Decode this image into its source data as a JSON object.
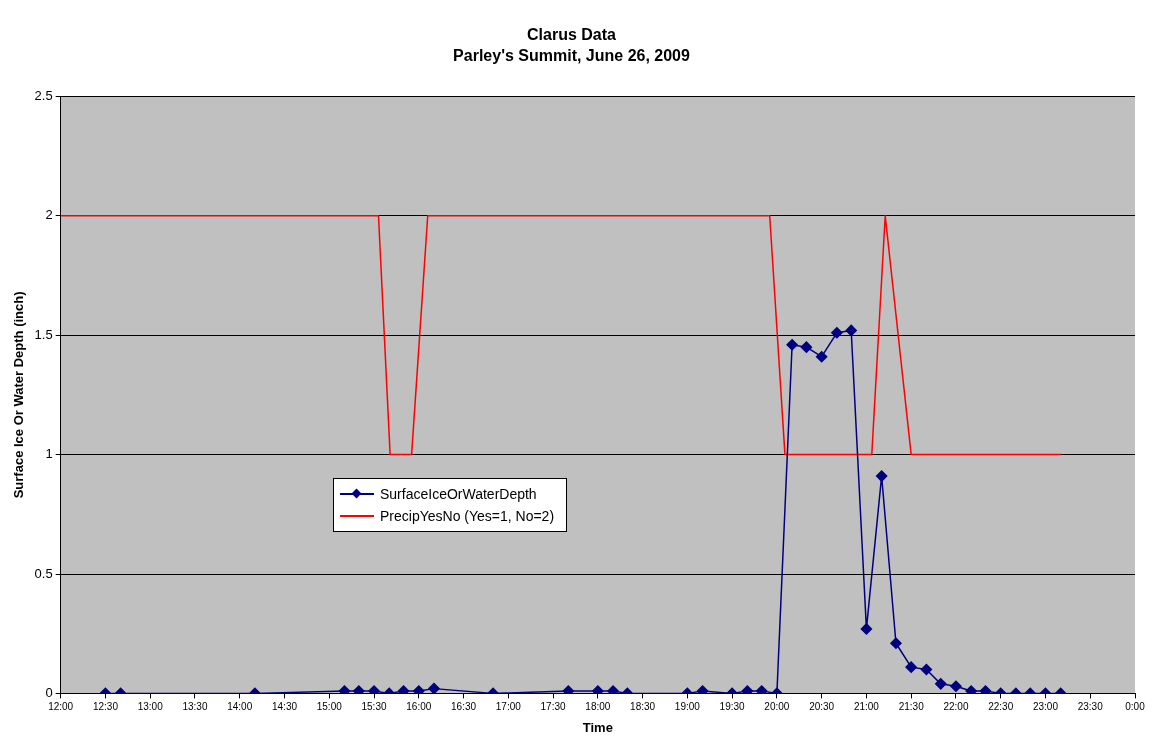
{
  "chart_data": {
    "type": "line",
    "title": "Clarus Data",
    "subtitle": "Parley's Summit, June 26, 2009",
    "xlabel": "Time",
    "ylabel": "Surface Ice Or Water Depth (inch)",
    "xlim": [
      12,
      24
    ],
    "xticks": [
      {
        "value": 12,
        "label": "12:00"
      },
      {
        "value": 12.5,
        "label": "12:30"
      },
      {
        "value": 13,
        "label": "13:00"
      },
      {
        "value": 13.5,
        "label": "13:30"
      },
      {
        "value": 14,
        "label": "14:00"
      },
      {
        "value": 14.5,
        "label": "14:30"
      },
      {
        "value": 15,
        "label": "15:00"
      },
      {
        "value": 15.5,
        "label": "15:30"
      },
      {
        "value": 16,
        "label": "16:00"
      },
      {
        "value": 16.5,
        "label": "16:30"
      },
      {
        "value": 17,
        "label": "17:00"
      },
      {
        "value": 17.5,
        "label": "17:30"
      },
      {
        "value": 18,
        "label": "18:00"
      },
      {
        "value": 18.5,
        "label": "18:30"
      },
      {
        "value": 19,
        "label": "19:00"
      },
      {
        "value": 19.5,
        "label": "19:30"
      },
      {
        "value": 20,
        "label": "20:00"
      },
      {
        "value": 20.5,
        "label": "20:30"
      },
      {
        "value": 21,
        "label": "21:00"
      },
      {
        "value": 21.5,
        "label": "21:30"
      },
      {
        "value": 22,
        "label": "22:00"
      },
      {
        "value": 22.5,
        "label": "22:30"
      },
      {
        "value": 23,
        "label": "23:00"
      },
      {
        "value": 23.5,
        "label": "23:30"
      },
      {
        "value": 24,
        "label": "0:00"
      }
    ],
    "ylim": [
      0,
      2.5
    ],
    "yticks": [
      0,
      0.5,
      1,
      1.5,
      2,
      2.5
    ],
    "grid": "y",
    "legend": "center",
    "series": [
      {
        "name": "SurfaceIceOrWaterDepth",
        "color": "#000080",
        "marker": "diamond",
        "x": [
          12.5,
          12.67,
          14.17,
          15.17,
          15.33,
          15.5,
          15.67,
          15.83,
          16,
          16.17,
          16.83,
          17.67,
          18,
          18.17,
          18.33,
          19,
          19.17,
          19.5,
          19.67,
          19.83,
          20,
          20.17,
          20.33,
          20.5,
          20.67,
          20.83,
          21,
          21.17,
          21.33,
          21.5,
          21.67,
          21.83,
          22,
          22.17,
          22.33,
          22.5,
          22.67,
          22.83,
          23,
          23.17
        ],
        "values": [
          0,
          0,
          0,
          0.01,
          0.01,
          0.01,
          0,
          0.01,
          0.01,
          0.02,
          0,
          0.01,
          0.01,
          0.01,
          0,
          0,
          0.01,
          0,
          0.01,
          0.01,
          0,
          1.46,
          1.45,
          1.41,
          1.51,
          1.52,
          0.27,
          0.91,
          0.21,
          0.11,
          0.1,
          0.04,
          0.03,
          0.01,
          0.01,
          0,
          0,
          0,
          0,
          0
        ]
      },
      {
        "name": "PrecipYesNo (Yes=1, No=2)",
        "color": "#ff0000",
        "marker": "none",
        "x": [
          12,
          15.55,
          15.68,
          15.92,
          16.1,
          19.92,
          20.09,
          21.06,
          21.21,
          21.5,
          23.17
        ],
        "values": [
          2,
          2,
          1,
          1,
          2,
          2,
          1,
          1,
          2,
          1,
          1
        ]
      }
    ]
  }
}
